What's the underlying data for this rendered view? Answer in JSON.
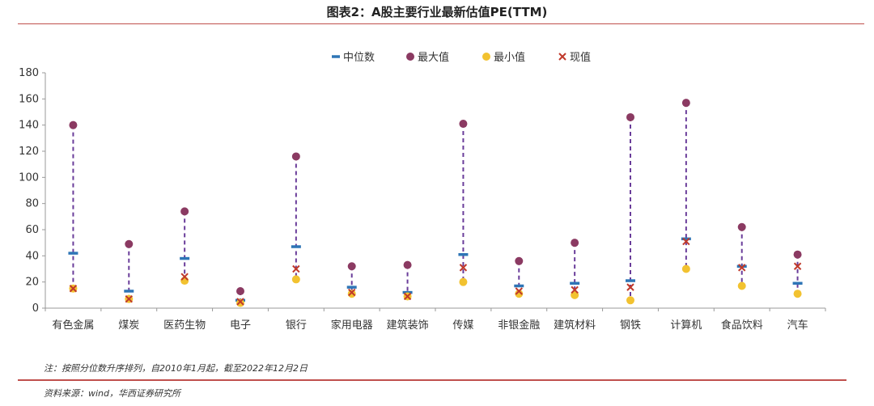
{
  "title": "图表2：A股主要行业最新估值PE(TTM)",
  "note": "注：按照分位数升序排列，自2010年1月起，截至2022年12月2日",
  "source": "资料来源：wind，华西证券研究所",
  "colors": {
    "median": "#2e75b6",
    "max": "#8b3a62",
    "min": "#f2c230",
    "current": "#c0392b",
    "range_line": "#6a3d9a",
    "rule": "#c0504d"
  },
  "chart_data": {
    "type": "scatter",
    "ylim": [
      0,
      180
    ],
    "yticks": [
      0,
      20,
      40,
      60,
      80,
      100,
      120,
      140,
      160,
      180
    ],
    "legend_position": "top-center",
    "grid": false,
    "categories": [
      "有色金属",
      "煤炭",
      "医药生物",
      "电子",
      "银行",
      "家用电器",
      "建筑装饰",
      "传媒",
      "非银金融",
      "建筑材料",
      "钢铁",
      "计算机",
      "食品饮料",
      "汽车"
    ],
    "series": [
      {
        "name": "中位数",
        "marker": "dash",
        "values": [
          42,
          13,
          38,
          6,
          47,
          16,
          12,
          41,
          17,
          19,
          21,
          53,
          32,
          19
        ]
      },
      {
        "name": "最大值",
        "marker": "circle",
        "values": [
          140,
          49,
          74,
          13,
          116,
          32,
          33,
          141,
          36,
          50,
          146,
          157,
          62,
          41
        ]
      },
      {
        "name": "最小值",
        "marker": "circle",
        "values": [
          15,
          7,
          21,
          4,
          22,
          11,
          9,
          20,
          11,
          10,
          6,
          30,
          17,
          11
        ]
      },
      {
        "name": "现值",
        "marker": "cross",
        "values": [
          15,
          7,
          24,
          5,
          30,
          12,
          9,
          31,
          13,
          14,
          16,
          51,
          31,
          32
        ]
      }
    ]
  }
}
